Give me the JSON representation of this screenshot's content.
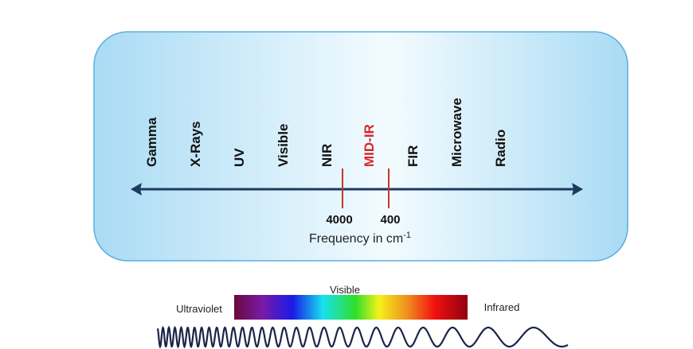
{
  "bands": [
    "Gamma",
    "X-Rays",
    "UV",
    "Visible",
    "NIR",
    "MID-IR",
    "FIR",
    "Microwave",
    "Radio"
  ],
  "markers": [
    "4000",
    "400"
  ],
  "axis_label": "Frequency in cm",
  "axis_label_exponent": "-1",
  "spectrum": {
    "title": "Visible",
    "left": "Ultraviolet",
    "right": "Infrared"
  }
}
